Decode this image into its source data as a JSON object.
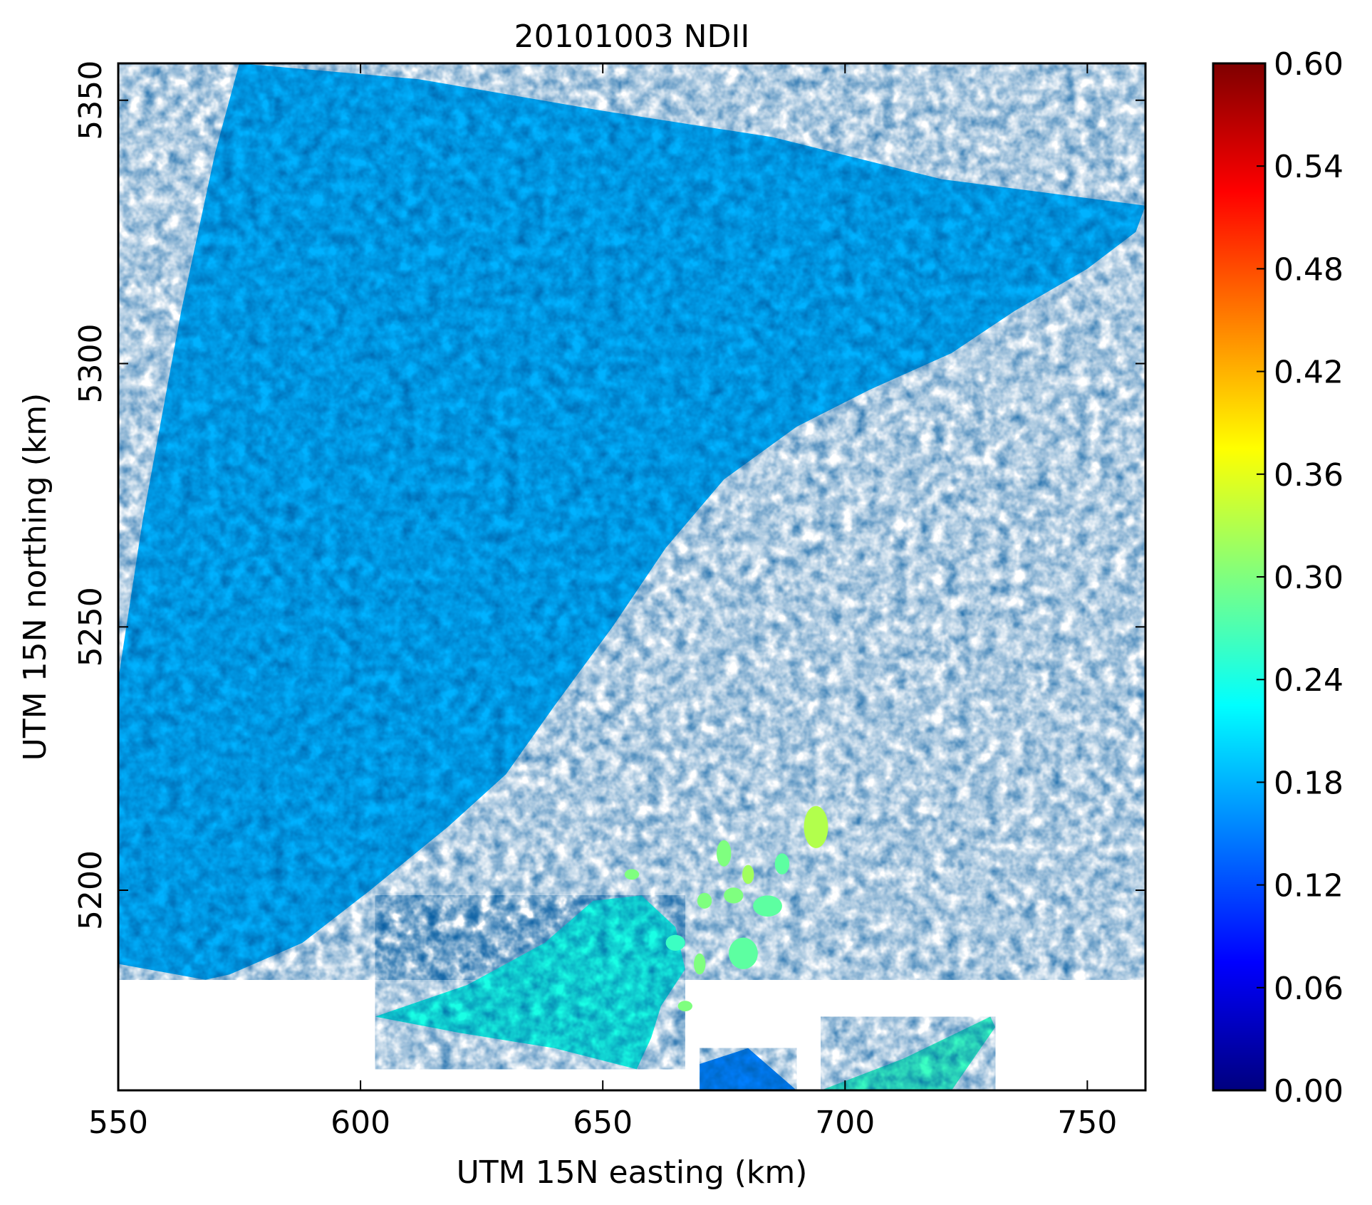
{
  "chart_data": {
    "type": "heatmap",
    "title": "20101003 NDII",
    "xlabel": "UTM 15N easting (km)",
    "ylabel": "UTM 15N northing (km)",
    "xlim": [
      550,
      762
    ],
    "ylim": [
      5162,
      5357
    ],
    "xticks": [
      550,
      600,
      650,
      700,
      750
    ],
    "yticks": [
      5200,
      5250,
      5300,
      5350
    ],
    "grid": false,
    "colormap": "jet",
    "colorbar": {
      "range": [
        0.0,
        0.6
      ],
      "ticks": [
        "0.00",
        "0.06",
        "0.12",
        "0.18",
        "0.24",
        "0.30",
        "0.36",
        "0.42",
        "0.48",
        "0.54",
        "0.60"
      ],
      "colors": [
        "#00007f",
        "#0000ff",
        "#007fff",
        "#00ffff",
        "#7fff7f",
        "#ffff00",
        "#ff7f00",
        "#ff0000",
        "#7f0000"
      ]
    },
    "valid_regions": [
      {
        "name": "mainland",
        "outline": [
          [
            575,
            5357
          ],
          [
            612,
            5354
          ],
          [
            650,
            5348
          ],
          [
            685,
            5343
          ],
          [
            720,
            5335
          ],
          [
            762,
            5330
          ],
          [
            760,
            5325
          ],
          [
            750,
            5318
          ],
          [
            735,
            5310
          ],
          [
            722,
            5302
          ],
          [
            705,
            5295
          ],
          [
            690,
            5288
          ],
          [
            675,
            5278
          ],
          [
            663,
            5265
          ],
          [
            652,
            5250
          ],
          [
            640,
            5235
          ],
          [
            630,
            5222
          ],
          [
            618,
            5212
          ],
          [
            602,
            5200
          ],
          [
            588,
            5190
          ],
          [
            573,
            5184
          ],
          [
            568,
            5183
          ],
          [
            550,
            5186
          ],
          [
            550,
            5240
          ],
          [
            555,
            5270
          ],
          [
            563,
            5310
          ],
          [
            570,
            5340
          ]
        ],
        "typical_ndii": 0.18
      },
      {
        "name": "peninsula",
        "outline": [
          [
            603,
            5176
          ],
          [
            622,
            5182
          ],
          [
            638,
            5190
          ],
          [
            648,
            5198
          ],
          [
            658,
            5199
          ],
          [
            665,
            5193
          ],
          [
            667,
            5185
          ],
          [
            662,
            5178
          ],
          [
            660,
            5172
          ],
          [
            657,
            5166
          ],
          [
            640,
            5170
          ],
          [
            620,
            5173
          ]
        ],
        "typical_ndii": 0.24
      },
      {
        "name": "southeast-shore",
        "outline": [
          [
            670,
            5167
          ],
          [
            680,
            5170
          ],
          [
            690,
            5162
          ],
          [
            670,
            5162
          ]
        ],
        "typical_ndii": 0.15
      },
      {
        "name": "southeast-strip",
        "outline": [
          [
            695,
            5162
          ],
          [
            712,
            5168
          ],
          [
            730,
            5176
          ],
          [
            731,
            5174
          ],
          [
            722,
            5162
          ]
        ],
        "typical_ndii": 0.26
      }
    ],
    "islands": [
      {
        "x": 694,
        "y": 5212,
        "rx": 2.5,
        "ry": 4,
        "ndii": 0.33
      },
      {
        "x": 675,
        "y": 5207,
        "rx": 1.5,
        "ry": 2.5,
        "ndii": 0.3
      },
      {
        "x": 687,
        "y": 5205,
        "rx": 1.5,
        "ry": 2,
        "ndii": 0.28
      },
      {
        "x": 680,
        "y": 5203,
        "rx": 1.2,
        "ry": 1.8,
        "ndii": 0.32
      },
      {
        "x": 684,
        "y": 5197,
        "rx": 3,
        "ry": 2,
        "ndii": 0.28
      },
      {
        "x": 677,
        "y": 5199,
        "rx": 2,
        "ry": 1.5,
        "ndii": 0.3
      },
      {
        "x": 671,
        "y": 5198,
        "rx": 1.5,
        "ry": 1.5,
        "ndii": 0.3
      },
      {
        "x": 679,
        "y": 5188,
        "rx": 3,
        "ry": 3,
        "ndii": 0.28
      },
      {
        "x": 670,
        "y": 5186,
        "rx": 1.2,
        "ry": 2,
        "ndii": 0.3
      },
      {
        "x": 667,
        "y": 5178,
        "rx": 1.5,
        "ry": 1,
        "ndii": 0.3
      },
      {
        "x": 665,
        "y": 5190,
        "rx": 2,
        "ry": 1.5,
        "ndii": 0.26
      },
      {
        "x": 656,
        "y": 5203,
        "rx": 1.5,
        "ry": 1,
        "ndii": 0.3
      }
    ]
  }
}
